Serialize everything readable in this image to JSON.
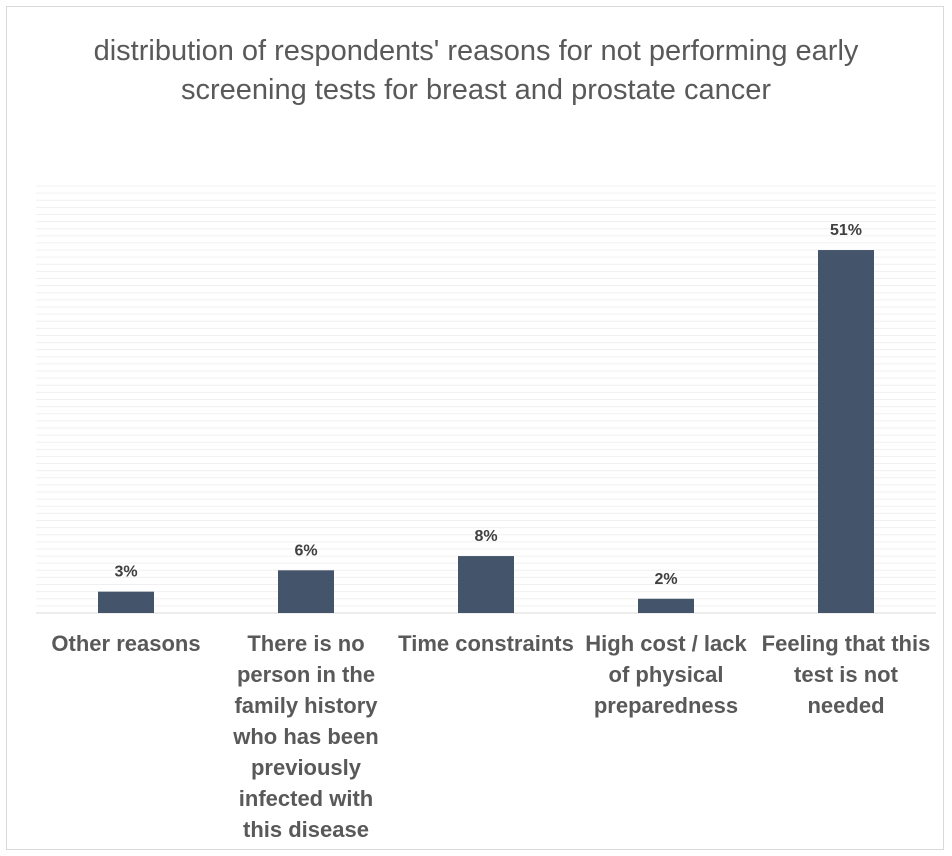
{
  "chart_data": {
    "type": "bar",
    "title": "distribution of respondents' reasons for not performing early screening tests for breast and prostate cancer",
    "xlabel": "",
    "ylabel": "",
    "categories": [
      "Other reasons",
      "There is no person in the family history who has been previously infected with this disease",
      "Time constraints",
      "High cost / lack of physical preparedness",
      "Feeling that this test is not needed"
    ],
    "series": [
      {
        "values": [
          3,
          6,
          8,
          2,
          51
        ],
        "labels": [
          "3%",
          "6%",
          "8%",
          "2%",
          "51%"
        ]
      }
    ],
    "ylim": [
      0,
      60
    ],
    "grid": true,
    "legend": "none",
    "bar_color": "#44546a",
    "grid_color": "#f0f0f0",
    "text_color": "#595959"
  }
}
